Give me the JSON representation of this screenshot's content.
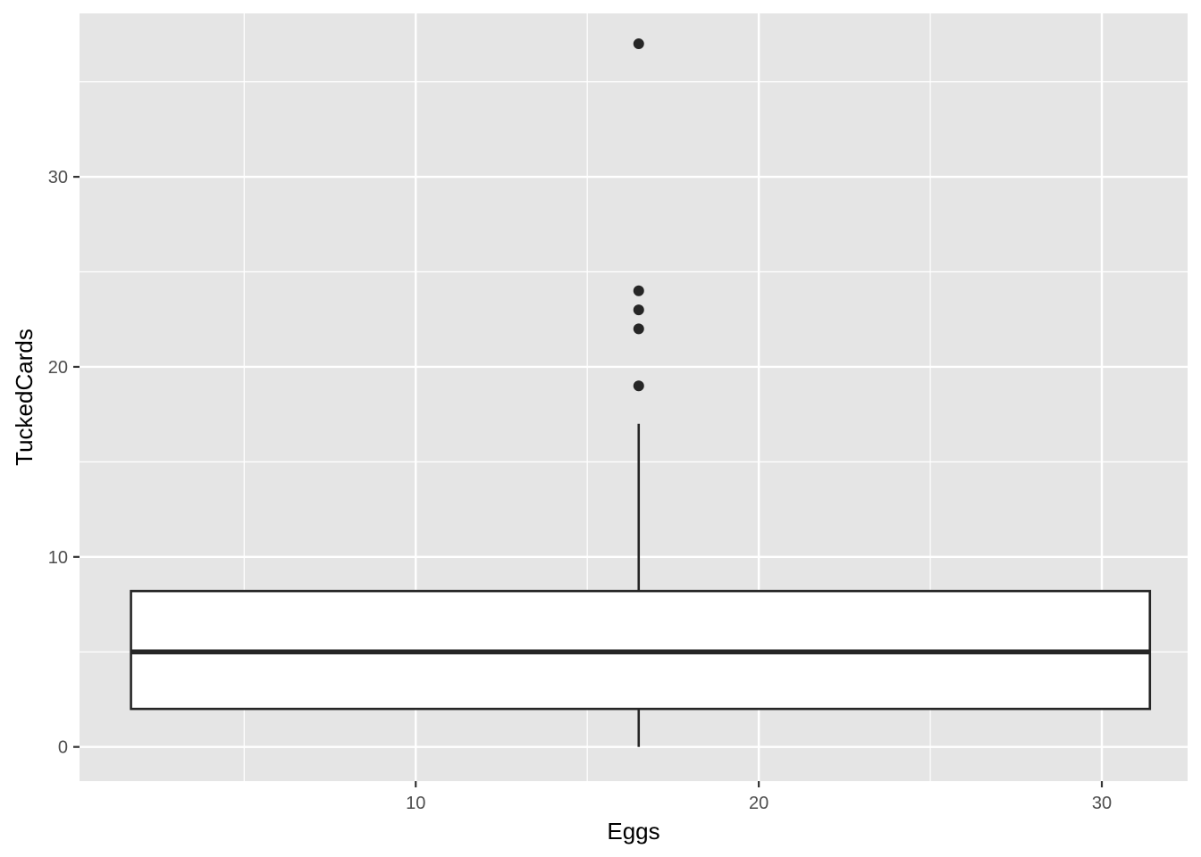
{
  "chart_data": {
    "type": "boxplot",
    "title": "",
    "xlabel": "Eggs",
    "ylabel": "TuckedCards",
    "xlim": [
      0.2,
      32.5
    ],
    "ylim": [
      -1.8,
      38.6
    ],
    "x_ticks": [
      10,
      20,
      30
    ],
    "y_ticks": [
      0,
      10,
      20,
      30
    ],
    "grid": true,
    "colors": {
      "panel": "#e5e5e5",
      "grid": "#ffffff",
      "box_fill": "#ffffff",
      "box_line": "#262626",
      "tick_text": "#4d4d4d"
    },
    "box": {
      "x_min": 1.7,
      "x_max": 31.4,
      "x_center": 16.5,
      "whisker_low": 0,
      "q1": 2,
      "median": 5,
      "q3": 8.2,
      "whisker_high": 17,
      "outliers": [
        19,
        22,
        23,
        24,
        37
      ]
    }
  }
}
